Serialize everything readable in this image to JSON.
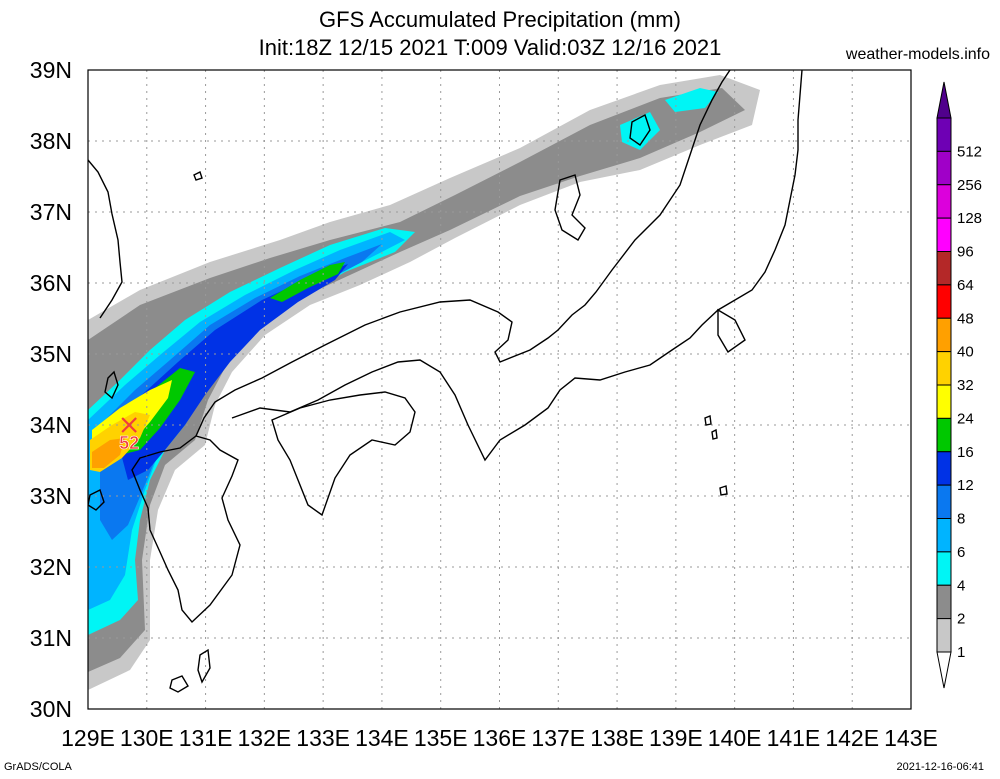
{
  "title": {
    "line1": "GFS Accumulated Precipitation (mm)",
    "line2": "Init:18Z 12/15 2021 T:009 Valid:03Z 12/16 2021"
  },
  "credit": "weather-models.info",
  "footer": {
    "left": "GrADS/COLA",
    "right": "2021-12-16-06:41"
  },
  "map": {
    "lon_range": [
      129,
      143
    ],
    "lat_range": [
      30,
      39
    ],
    "lon_labels": [
      "129E",
      "130E",
      "131E",
      "132E",
      "133E",
      "134E",
      "135E",
      "136E",
      "137E",
      "138E",
      "139E",
      "140E",
      "141E",
      "142E",
      "143E"
    ],
    "lat_labels": [
      "30N",
      "31N",
      "32N",
      "33N",
      "34N",
      "35N",
      "36N",
      "37N",
      "38N",
      "39N"
    ],
    "marker": {
      "lon": 129.7,
      "lat": 34.0,
      "value": "52",
      "color": "#f03c3c"
    }
  },
  "legend": {
    "levels": [
      {
        "label": "1",
        "color": "#c8c8c8"
      },
      {
        "label": "2",
        "color": "#8c8c8c"
      },
      {
        "label": "4",
        "color": "#00f5f5"
      },
      {
        "label": "6",
        "color": "#00b4ff"
      },
      {
        "label": "8",
        "color": "#0a78f0"
      },
      {
        "label": "12",
        "color": "#0032e6"
      },
      {
        "label": "16",
        "color": "#00c800"
      },
      {
        "label": "24",
        "color": "#ffff00"
      },
      {
        "label": "32",
        "color": "#ffd200"
      },
      {
        "label": "40",
        "color": "#ffa000"
      },
      {
        "label": "48",
        "color": "#ff0000"
      },
      {
        "label": "64",
        "color": "#b42828"
      },
      {
        "label": "96",
        "color": "#ff00ff"
      },
      {
        "label": "128",
        "color": "#dc00dc"
      },
      {
        "label": "256",
        "color": "#a000c8"
      },
      {
        "label": "512",
        "color": "#6e00b4"
      }
    ],
    "top_cap_color": "#50008c",
    "bottom_cap_color": "#ffffff"
  }
}
